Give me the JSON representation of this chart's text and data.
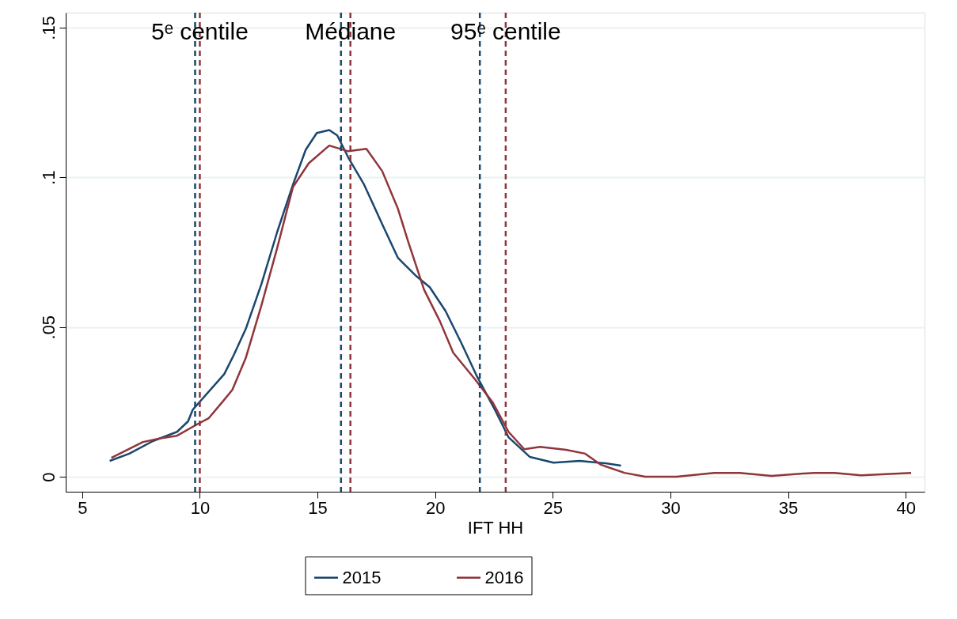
{
  "chart_data": {
    "type": "line",
    "xlabel": "IFT HH",
    "xlim": [
      4.3,
      40.8
    ],
    "xticks": [
      5,
      10,
      15,
      20,
      25,
      30,
      35,
      40
    ],
    "ylim": [
      -0.005,
      0.155
    ],
    "yticks": [
      0,
      {
        "value": 0.05,
        "label": ".05"
      },
      {
        "value": 0.1,
        "label": ".1"
      },
      {
        "value": 0.15,
        "label": ".15"
      }
    ],
    "grid": "y",
    "legend": "bottom",
    "line_style": "solid",
    "marker": "none",
    "series": [
      {
        "name": "2015",
        "color": "#1a476f",
        "x": [
          6.17,
          7.0,
          8.0,
          9.03,
          9.5,
          9.7,
          11.04,
          11.44,
          11.95,
          12.62,
          13.29,
          13.96,
          14.5,
          14.97,
          15.5,
          15.84,
          16.31,
          16.98,
          17.75,
          18.42,
          19.2,
          19.77,
          20.44,
          21.1,
          21.78,
          22.55,
          23.12,
          24.03,
          25.03,
          26.14,
          27.25,
          27.9
        ],
        "values": [
          0.0053,
          0.0077,
          0.0119,
          0.015,
          0.0185,
          0.0224,
          0.0343,
          0.0406,
          0.0493,
          0.0644,
          0.0818,
          0.0976,
          0.1092,
          0.1148,
          0.1158,
          0.114,
          0.1066,
          0.0976,
          0.0844,
          0.0731,
          0.067,
          0.0633,
          0.0554,
          0.0449,
          0.0335,
          0.0222,
          0.0132,
          0.0066,
          0.0047,
          0.0053,
          0.0045,
          0.0037
        ]
      },
      {
        "name": "2016",
        "color": "#90353b",
        "x": [
          6.24,
          7.58,
          8.36,
          9.03,
          9.93,
          10.37,
          10.94,
          11.38,
          11.95,
          12.62,
          13.29,
          13.96,
          14.63,
          15.5,
          16.31,
          17.08,
          17.75,
          18.42,
          18.86,
          19.53,
          20.2,
          20.77,
          21.68,
          22.45,
          23.12,
          23.79,
          24.46,
          25.57,
          26.38,
          27.05,
          28.05,
          28.93,
          30.27,
          31.85,
          32.95,
          34.3,
          36.1,
          36.98,
          38.1,
          40.23
        ],
        "values": [
          0.0063,
          0.0116,
          0.0129,
          0.0137,
          0.0177,
          0.0195,
          0.0248,
          0.029,
          0.0396,
          0.0573,
          0.0765,
          0.0968,
          0.1047,
          0.1106,
          0.1087,
          0.1095,
          0.1021,
          0.0895,
          0.0784,
          0.0625,
          0.052,
          0.0414,
          0.0327,
          0.0248,
          0.015,
          0.0092,
          0.01,
          0.009,
          0.0077,
          0.004,
          0.0013,
          0,
          0,
          0.0013,
          0.0013,
          0.0003,
          0.0013,
          0.0013,
          0.0005,
          0.0013
        ]
      }
    ],
    "ref_lines": [
      {
        "axis": "x",
        "value": 9.8,
        "color": "#1a476f",
        "line_style": "dashed"
      },
      {
        "axis": "x",
        "value": 10.0,
        "color": "#90353b",
        "line_style": "dashed",
        "label": "5ᵉ centile"
      },
      {
        "axis": "x",
        "value": 16.0,
        "color": "#1a476f",
        "line_style": "dashed"
      },
      {
        "axis": "x",
        "value": 16.4,
        "color": "#90353b",
        "line_style": "dashed",
        "label": "Médiane"
      },
      {
        "axis": "x",
        "value": 21.9,
        "color": "#1a476f",
        "line_style": "dashed"
      },
      {
        "axis": "x",
        "value": 23.0,
        "color": "#90353b",
        "line_style": "dashed",
        "label": "95ᵉ centile"
      }
    ]
  }
}
